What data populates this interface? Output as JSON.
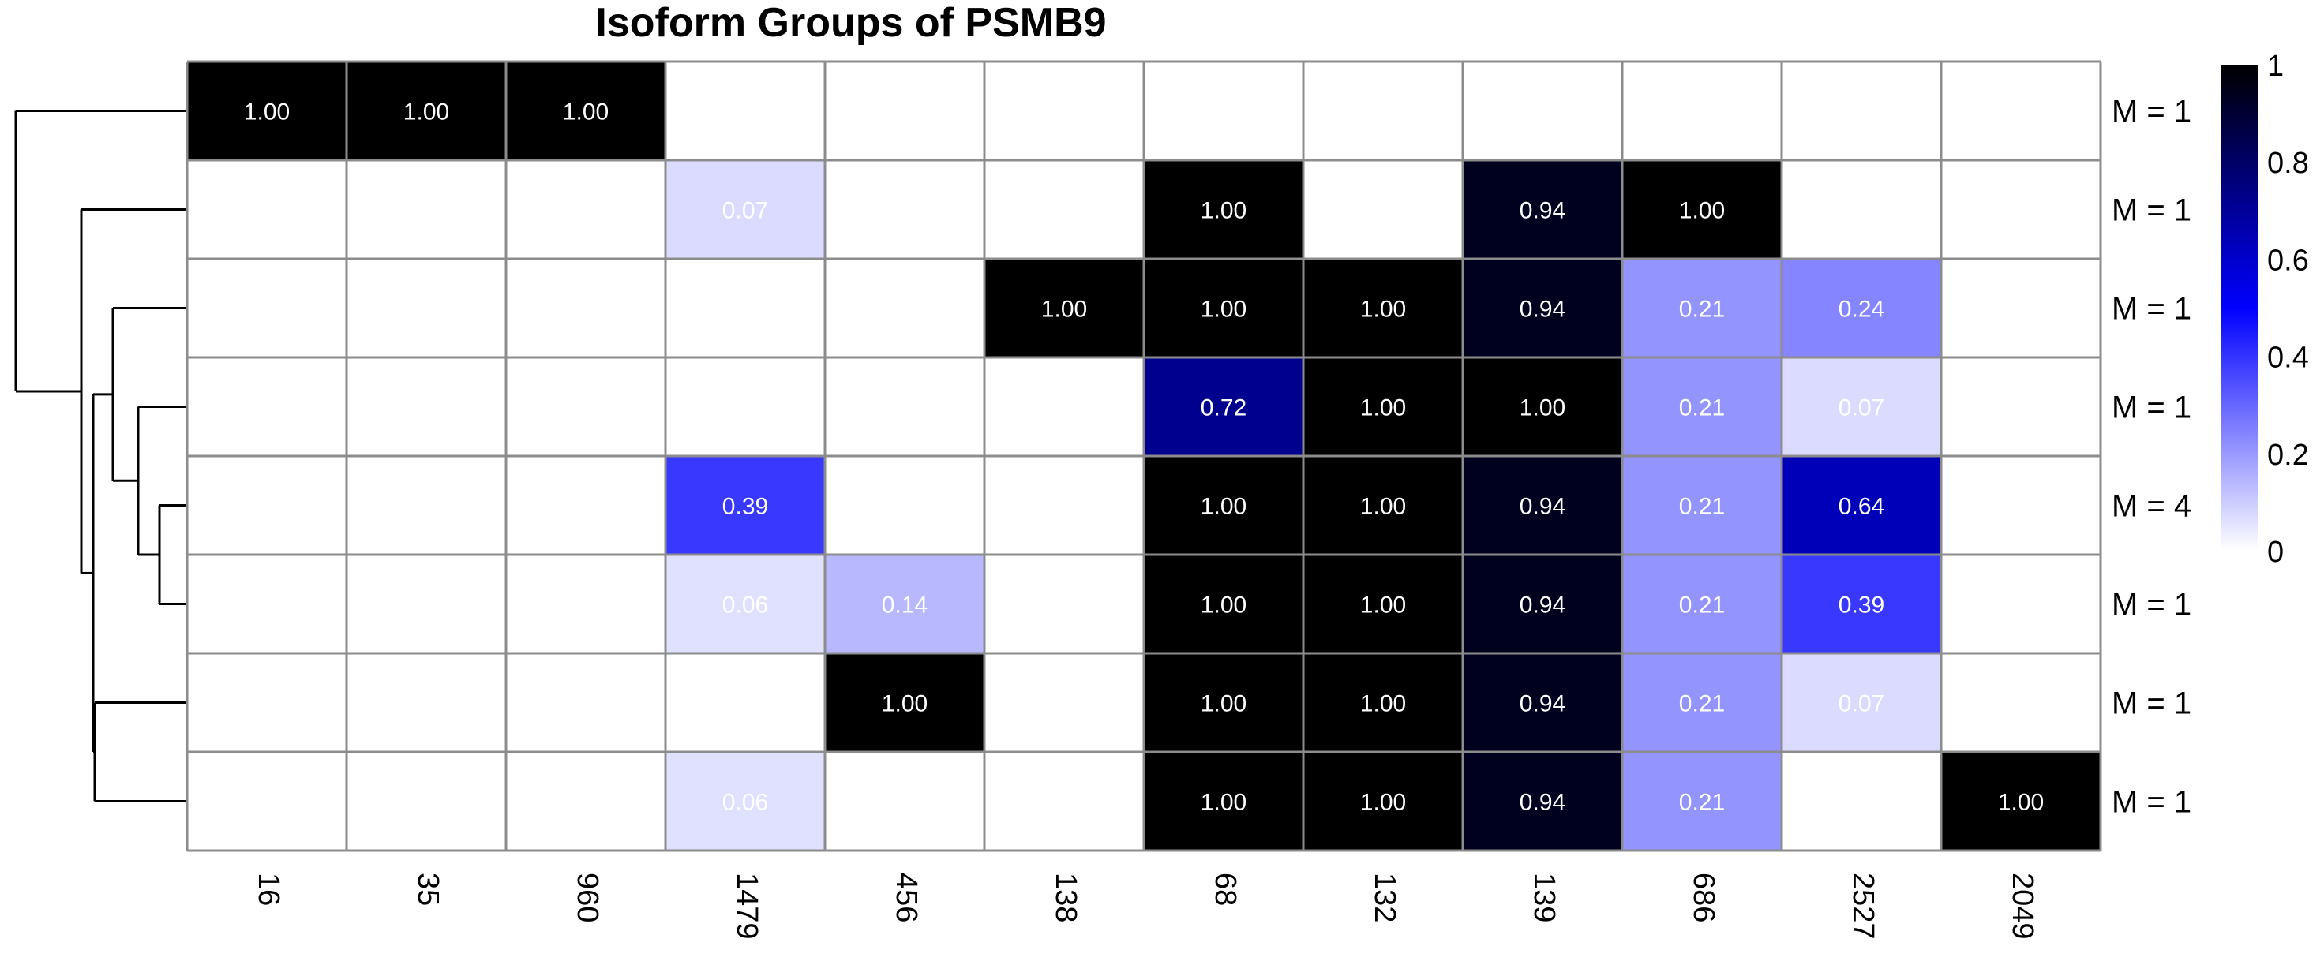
{
  "chart_data": {
    "type": "heatmap",
    "title": "Isoform Groups of PSMB9",
    "xlabel": "",
    "ylabel": "",
    "columns": [
      "16",
      "35",
      "960",
      "1479",
      "456",
      "138",
      "68",
      "132",
      "139",
      "686",
      "2527",
      "2049"
    ],
    "rows": [
      {
        "label": "M = 1",
        "values": [
          1.0,
          1.0,
          1.0,
          0,
          0,
          0,
          0,
          0,
          0,
          0,
          0,
          0
        ]
      },
      {
        "label": "M = 1",
        "values": [
          0,
          0,
          0,
          0.07,
          0,
          0,
          1.0,
          0,
          0.94,
          1.0,
          0,
          0
        ]
      },
      {
        "label": "M = 1",
        "values": [
          0,
          0,
          0,
          0,
          0,
          1.0,
          1.0,
          1.0,
          0.94,
          0.21,
          0.24,
          0
        ]
      },
      {
        "label": "M = 1",
        "values": [
          0,
          0,
          0,
          0,
          0,
          0,
          0.72,
          1.0,
          1.0,
          0.21,
          0.07,
          0
        ]
      },
      {
        "label": "M = 4",
        "values": [
          0,
          0,
          0,
          0.39,
          0,
          0,
          1.0,
          1.0,
          0.94,
          0.21,
          0.64,
          0
        ]
      },
      {
        "label": "M = 1",
        "values": [
          0,
          0,
          0,
          0.06,
          0.14,
          0,
          1.0,
          1.0,
          0.94,
          0.21,
          0.39,
          0
        ]
      },
      {
        "label": "M = 1",
        "values": [
          0,
          0,
          0,
          0,
          1.0,
          0,
          1.0,
          1.0,
          0.94,
          0.21,
          0.07,
          0
        ]
      },
      {
        "label": "M = 1",
        "values": [
          0,
          0,
          0,
          0.06,
          0,
          0,
          1.0,
          1.0,
          0.94,
          0.21,
          0,
          1.0
        ]
      }
    ],
    "value_range": [
      0,
      1
    ],
    "colorbar": {
      "ticks": [
        "1",
        "0.8",
        "0.6",
        "0.4",
        "0.2",
        "0"
      ],
      "tick_values": [
        1,
        0.8,
        0.6,
        0.4,
        0.2,
        0
      ],
      "colors": [
        "#ffffff",
        "#0000ff",
        "#000000"
      ],
      "placement": "right"
    },
    "zero_cells_labeled": false,
    "grid": true,
    "dendrogram": "left"
  }
}
